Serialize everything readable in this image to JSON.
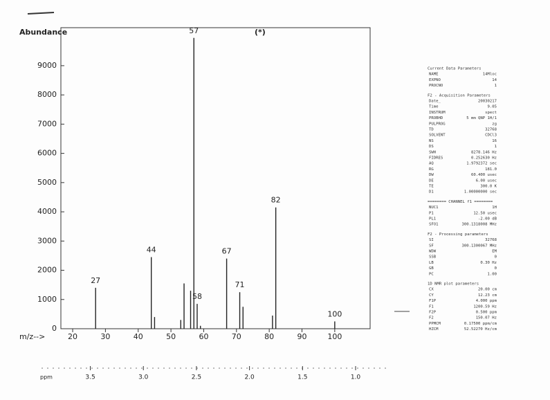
{
  "chart_data": {
    "type": "stem",
    "y_label": "Abundance",
    "x_label": "m/z-->",
    "annotation": "(*)",
    "x": [
      27,
      44,
      45,
      53,
      54,
      56,
      57,
      58,
      59,
      67,
      71,
      72,
      81,
      82,
      100
    ],
    "values": [
      1400,
      2450,
      400,
      300,
      1550,
      1300,
      9950,
      850,
      100,
      2400,
      1250,
      750,
      450,
      4150,
      250
    ],
    "peak_labels": [
      27,
      44,
      57,
      58,
      67,
      71,
      82,
      100
    ],
    "color": "#222222",
    "xlim": [
      16.4,
      110.8
    ],
    "xticks": [
      20,
      30,
      40,
      50,
      60,
      70,
      80,
      90,
      100
    ],
    "ylim": [
      0,
      10300
    ],
    "yticks": [
      0,
      1000,
      2000,
      3000,
      4000,
      5000,
      6000,
      7000,
      8000,
      9000
    ],
    "x2_label": "ppm",
    "x2lim": [
      3.96,
      0.7
    ],
    "x2ticks": [
      {
        "value": 3.5,
        "label": "3.5"
      },
      {
        "value": 3.0,
        "label": "3.0"
      },
      {
        "value": 2.5,
        "label": "2.5"
      },
      {
        "value": 2.0,
        "label": "2.0"
      },
      {
        "value": 1.5,
        "label": "1.5"
      },
      {
        "value": 1.0,
        "label": "1.0"
      }
    ]
  },
  "parameters": {
    "sections": [
      {
        "title": "Current Data Parameters",
        "rows": [
          [
            "NAME",
            "14Mloc"
          ],
          [
            "EXPNO",
            "14"
          ],
          [
            "PROCNO",
            "1"
          ]
        ]
      },
      {
        "title": "F2 - Acquisition Parameters",
        "rows": [
          [
            "Date_",
            "20030217"
          ],
          [
            "Time",
            "9.05"
          ],
          [
            "INSTRUM",
            "spect"
          ],
          [
            "PROBHD",
            "5 mm QNP 1H/1"
          ],
          [
            "PULPROG",
            "zg"
          ],
          [
            "TD",
            "32768"
          ],
          [
            "SOLVENT",
            "CDCl3"
          ],
          [
            "NS",
            "16"
          ],
          [
            "DS",
            "1"
          ],
          [
            "SWH",
            "8278.146 Hz"
          ],
          [
            "FIDRES",
            "0.252630 Hz"
          ],
          [
            "AQ",
            "1.9792372 sec"
          ],
          [
            "RG",
            "181.0"
          ],
          [
            "DW",
            "60.400 usec"
          ],
          [
            "DE",
            "6.00 usec"
          ],
          [
            "TE",
            "300.0 K"
          ],
          [
            "D1",
            "1.00000000 sec"
          ]
        ]
      },
      {
        "title": "======== CHANNEL f1 ========",
        "rows": [
          [
            "NUC1",
            "1H"
          ],
          [
            "P1",
            "12.50 usec"
          ],
          [
            "PL1",
            "-2.00 dB"
          ],
          [
            "SFO1",
            "300.1318008 MHz"
          ]
        ]
      },
      {
        "title": "F2 - Processing parameters",
        "rows": [
          [
            "SI",
            "32768"
          ],
          [
            "SF",
            "300.1300067 MHz"
          ],
          [
            "WDW",
            "EM"
          ],
          [
            "SSB",
            "0"
          ],
          [
            "LB",
            "0.30 Hz"
          ],
          [
            "GB",
            "0"
          ],
          [
            "PC",
            "1.00"
          ]
        ]
      },
      {
        "title": "1D NMR plot parameters",
        "rows": [
          [
            "CX",
            "20.00 cm"
          ],
          [
            "CY",
            "12.23 cm"
          ],
          [
            "F1P",
            "4.000 ppm"
          ],
          [
            "F1",
            "1200.59 Hz"
          ],
          [
            "F2P",
            "0.500 ppm"
          ],
          [
            "F2",
            "150.07 Hz"
          ],
          [
            "PPMCM",
            "0.17500 ppm/cm"
          ],
          [
            "HZCM",
            "52.52270 Hz/cm"
          ]
        ]
      }
    ]
  }
}
